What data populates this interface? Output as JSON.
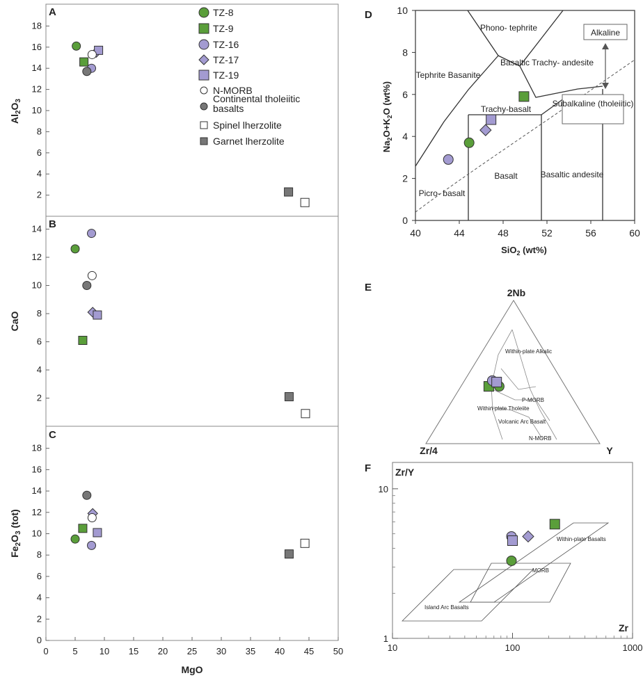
{
  "legend": [
    {
      "label": "TZ-8",
      "shape": "circle",
      "fill": "#5a9e3a"
    },
    {
      "label": "TZ-9",
      "shape": "square",
      "fill": "#5a9e3a"
    },
    {
      "label": "TZ-16",
      "shape": "circle",
      "fill": "#a39bd1"
    },
    {
      "label": "TZ-17",
      "shape": "diamond",
      "fill": "#a39bd1"
    },
    {
      "label": "TZ-19",
      "shape": "square",
      "fill": "#a39bd1"
    },
    {
      "label": "N-MORB",
      "shape": "circle",
      "fill": "#ffffff"
    },
    {
      "label": "Continental tholeiitic basalts",
      "shape": "circle",
      "fill": "#777777"
    },
    {
      "label": "Spinel lherzolite",
      "shape": "square",
      "fill": "#ffffff"
    },
    {
      "label": "Garnet lherzolite",
      "shape": "square",
      "fill": "#777777"
    }
  ],
  "chart_data": [
    {
      "panel": "A",
      "type": "scatter",
      "xlabel": "MgO",
      "ylabel": "Al2O3",
      "xlim": [
        0,
        50
      ],
      "ylim": [
        0,
        20
      ],
      "yticks": [
        2,
        4,
        6,
        8,
        10,
        12,
        14,
        16,
        18
      ],
      "points": [
        {
          "series": "TZ-8",
          "x": 5.2,
          "y": 16.1
        },
        {
          "series": "TZ-9",
          "x": 6.5,
          "y": 14.6
        },
        {
          "series": "TZ-16",
          "x": 7.8,
          "y": 14.0
        },
        {
          "series": "TZ-17",
          "x": 8.6,
          "y": 15.5
        },
        {
          "series": "TZ-19",
          "x": 9.0,
          "y": 15.7
        },
        {
          "series": "N-MORB",
          "x": 7.9,
          "y": 15.3
        },
        {
          "series": "Continental tholeiitic basalts",
          "x": 7.0,
          "y": 13.7
        },
        {
          "series": "Spinel lherzolite",
          "x": 44.3,
          "y": 1.3
        },
        {
          "series": "Garnet lherzolite",
          "x": 41.5,
          "y": 2.3
        }
      ]
    },
    {
      "panel": "B",
      "type": "scatter",
      "xlabel": "MgO",
      "ylabel": "CaO",
      "xlim": [
        0,
        50
      ],
      "ylim": [
        0,
        15
      ],
      "yticks": [
        2,
        4,
        6,
        8,
        10,
        12,
        14
      ],
      "points": [
        {
          "series": "TZ-8",
          "x": 5.0,
          "y": 12.6
        },
        {
          "series": "TZ-9",
          "x": 6.3,
          "y": 6.1
        },
        {
          "series": "TZ-16",
          "x": 7.8,
          "y": 13.7
        },
        {
          "series": "TZ-17",
          "x": 8.0,
          "y": 8.1
        },
        {
          "series": "TZ-19",
          "x": 8.8,
          "y": 7.9
        },
        {
          "series": "N-MORB",
          "x": 7.9,
          "y": 10.7
        },
        {
          "series": "Continental tholeiitic basalts",
          "x": 7.0,
          "y": 10.0
        },
        {
          "series": "Spinel lherzolite",
          "x": 44.4,
          "y": 0.9
        },
        {
          "series": "Garnet lherzolite",
          "x": 41.6,
          "y": 2.1
        }
      ]
    },
    {
      "panel": "C",
      "type": "scatter",
      "xlabel": "MgO",
      "ylabel": "Fe2O3 (tot)",
      "xlim": [
        0,
        50
      ],
      "ylim": [
        0,
        20
      ],
      "xticks": [
        0,
        5,
        10,
        15,
        20,
        25,
        30,
        35,
        40,
        45,
        50
      ],
      "yticks": [
        0,
        2,
        4,
        6,
        8,
        10,
        12,
        14,
        16,
        18
      ],
      "points": [
        {
          "series": "TZ-8",
          "x": 5.0,
          "y": 9.5
        },
        {
          "series": "TZ-9",
          "x": 6.3,
          "y": 10.5
        },
        {
          "series": "TZ-16",
          "x": 7.8,
          "y": 8.9
        },
        {
          "series": "TZ-17",
          "x": 8.0,
          "y": 11.9
        },
        {
          "series": "TZ-19",
          "x": 8.8,
          "y": 10.1
        },
        {
          "series": "N-MORB",
          "x": 7.9,
          "y": 11.5
        },
        {
          "series": "Continental tholeiitic basalts",
          "x": 7.0,
          "y": 13.6
        },
        {
          "series": "Spinel lherzolite",
          "x": 44.3,
          "y": 9.1
        },
        {
          "series": "Garnet lherzolite",
          "x": 41.6,
          "y": 8.1
        }
      ]
    },
    {
      "panel": "D",
      "type": "scatter",
      "xlabel": "SiO2 (wt%)",
      "ylabel": "Na2O+K2O (wt%)",
      "xlim": [
        40,
        60
      ],
      "ylim": [
        0,
        10
      ],
      "xticks": [
        40,
        44,
        48,
        52,
        56,
        60
      ],
      "yticks": [
        0,
        2,
        4,
        6,
        8,
        10
      ],
      "fields": [
        "Phono- tephrite",
        "Tephrite Basanite",
        "Basaltic Trachy- andesite",
        "Trachy-basalt",
        "Basalt",
        "Basaltic andesite",
        "Picro- basalt"
      ],
      "series_labels": [
        "Alkaline",
        "Subalkaline (tholeiitic)"
      ],
      "points": [
        {
          "series": "TZ-8",
          "x": 44.9,
          "y": 3.7
        },
        {
          "series": "TZ-9",
          "x": 49.9,
          "y": 5.9
        },
        {
          "series": "TZ-16",
          "x": 43.0,
          "y": 2.9
        },
        {
          "series": "TZ-17",
          "x": 46.4,
          "y": 4.3
        },
        {
          "series": "TZ-19",
          "x": 46.9,
          "y": 4.8
        }
      ]
    },
    {
      "panel": "E",
      "type": "scatter",
      "vertex_labels": {
        "top": "2Nb",
        "left": "Zr/4",
        "right": "Y"
      },
      "fields": [
        "Within-plate Alkalic",
        "P-MORB",
        "Within-plate Tholeiite",
        "Volcanic Arc Basalt",
        "N-MORB"
      ],
      "points": [
        {
          "series": "TZ-8",
          "nb": 0.4,
          "zr": 0.38,
          "y": 0.22
        },
        {
          "series": "TZ-9",
          "nb": 0.4,
          "zr": 0.44,
          "y": 0.16
        },
        {
          "series": "TZ-16",
          "nb": 0.44,
          "zr": 0.4,
          "y": 0.16
        },
        {
          "series": "TZ-19",
          "nb": 0.43,
          "zr": 0.38,
          "y": 0.19
        }
      ]
    },
    {
      "panel": "F",
      "type": "scatter",
      "xlabel": "Zr",
      "ylabel": "Zr/Y",
      "xscale": "log",
      "yscale": "log",
      "xlim": [
        10,
        1000
      ],
      "ylim": [
        1,
        15
      ],
      "xticks": [
        10,
        100,
        1000
      ],
      "yticks": [
        1,
        10
      ],
      "fields": [
        "Within-plate Basalts",
        "MORB",
        "Island Arc Basalts"
      ],
      "points": [
        {
          "series": "TZ-8",
          "x": 98,
          "y": 3.3
        },
        {
          "series": "TZ-9",
          "x": 225,
          "y": 5.8
        },
        {
          "series": "TZ-16",
          "x": 98,
          "y": 4.8
        },
        {
          "series": "TZ-17",
          "x": 135,
          "y": 4.8
        },
        {
          "series": "TZ-19",
          "x": 100,
          "y": 4.5
        }
      ]
    }
  ]
}
